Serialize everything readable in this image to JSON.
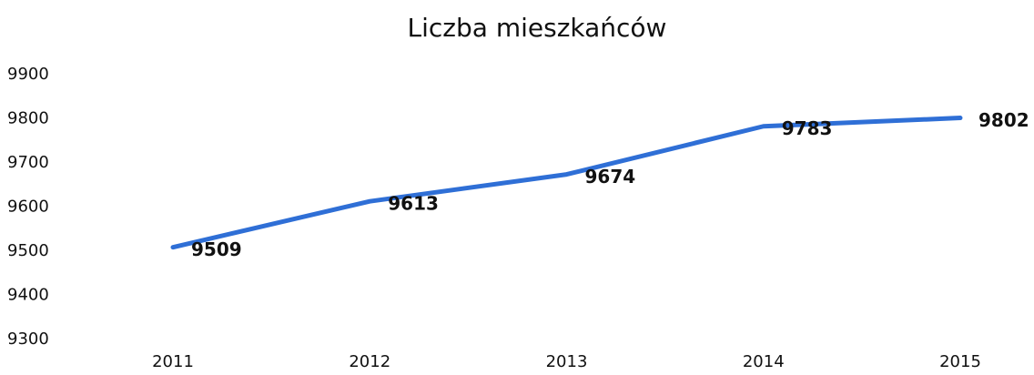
{
  "chart_data": {
    "type": "line",
    "title": "Liczba mieszkańców",
    "categories": [
      "2011",
      "2012",
      "2013",
      "2014",
      "2015"
    ],
    "series": [
      {
        "name": "Liczba mieszkańców",
        "color": "#2f6fd6",
        "values": [
          9509,
          9613,
          9674,
          9783,
          9802
        ]
      }
    ],
    "ylim": [
      9300,
      9900
    ],
    "yticks": [
      9300,
      9400,
      9500,
      9600,
      9700,
      9800,
      9900
    ],
    "grid": false,
    "legend": false
  }
}
